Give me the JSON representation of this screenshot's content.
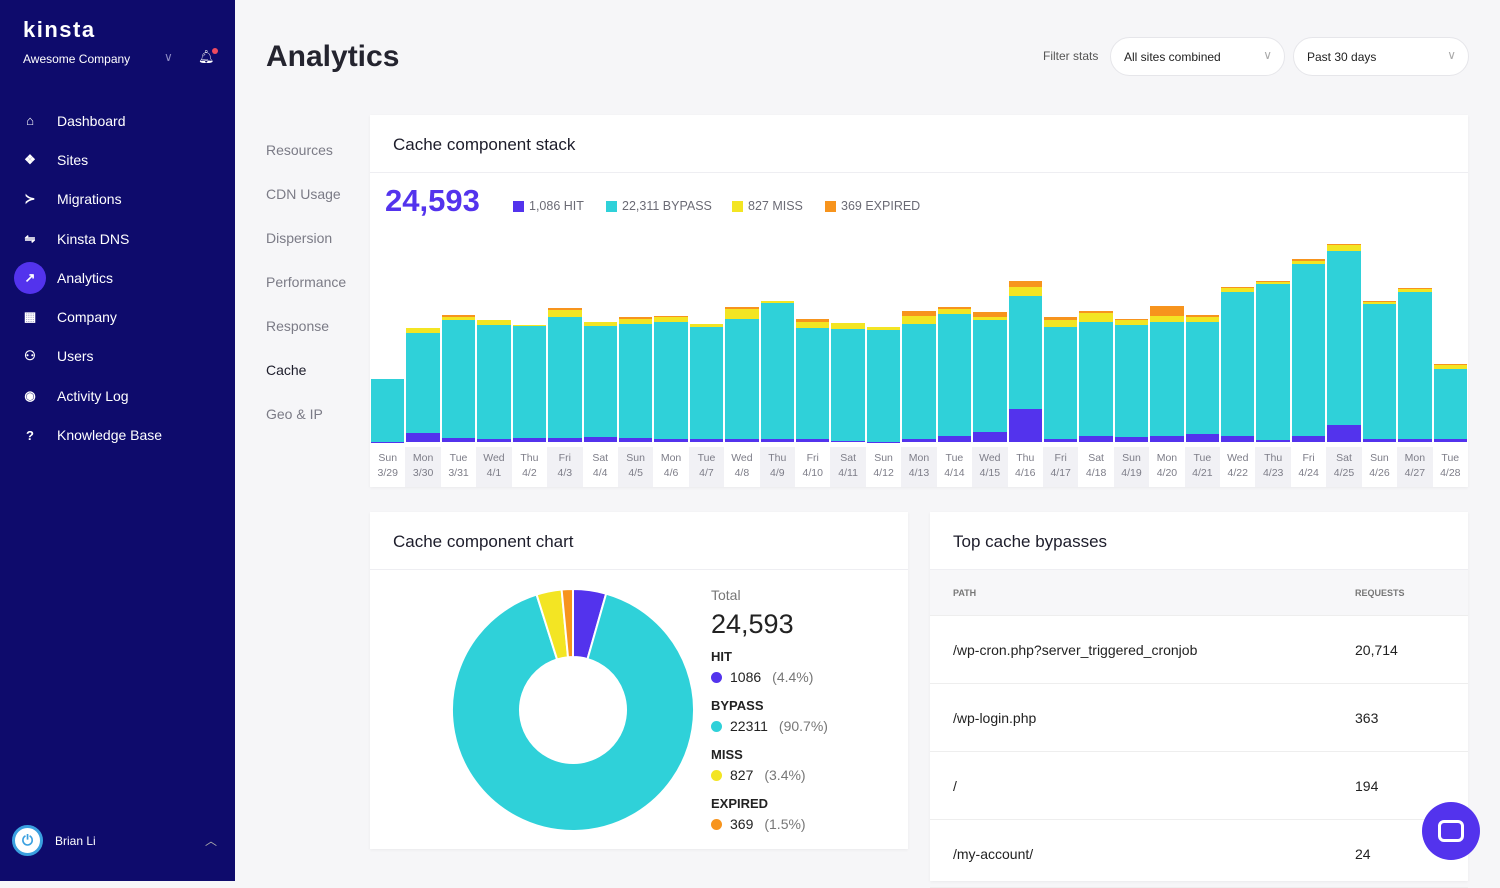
{
  "sidebar": {
    "logo": "kinsta",
    "company": "Awesome Company",
    "items": [
      {
        "label": "Dashboard",
        "icon": "⌂"
      },
      {
        "label": "Sites",
        "icon": "❖"
      },
      {
        "label": "Migrations",
        "icon": "≻"
      },
      {
        "label": "Kinsta DNS",
        "icon": "⇋"
      },
      {
        "label": "Analytics",
        "icon": "↗"
      },
      {
        "label": "Company",
        "icon": "▦"
      },
      {
        "label": "Users",
        "icon": "⚇"
      },
      {
        "label": "Activity Log",
        "icon": "◉"
      },
      {
        "label": "Knowledge Base",
        "icon": "?"
      }
    ],
    "user": "Brian Li"
  },
  "header": {
    "title": "Analytics",
    "filter_label": "Filter stats",
    "site_select": "All sites combined",
    "range_select": "Past 30 days"
  },
  "subnav": [
    "Resources",
    "CDN Usage",
    "Dispersion",
    "Performance",
    "Response",
    "Cache",
    "Geo & IP"
  ],
  "colors": {
    "hit": "#5333ed",
    "bypass": "#2fd1d9",
    "miss": "#f3e523",
    "expired": "#f7941d"
  },
  "stack": {
    "title": "Cache component stack",
    "total": "24,593",
    "legend": [
      "1,086 HIT",
      "22,311 BYPASS",
      "827 MISS",
      "369 EXPIRED"
    ]
  },
  "chart_data": [
    {
      "type": "bar",
      "stacked": true,
      "title": "Cache component stack",
      "categories": [
        [
          "Sun",
          "3/29"
        ],
        [
          "Mon",
          "3/30"
        ],
        [
          "Tue",
          "3/31"
        ],
        [
          "Wed",
          "4/1"
        ],
        [
          "Thu",
          "4/2"
        ],
        [
          "Fri",
          "4/3"
        ],
        [
          "Sat",
          "4/4"
        ],
        [
          "Sun",
          "4/5"
        ],
        [
          "Mon",
          "4/6"
        ],
        [
          "Tue",
          "4/7"
        ],
        [
          "Wed",
          "4/8"
        ],
        [
          "Thu",
          "4/9"
        ],
        [
          "Fri",
          "4/10"
        ],
        [
          "Sat",
          "4/11"
        ],
        [
          "Sun",
          "4/12"
        ],
        [
          "Mon",
          "4/13"
        ],
        [
          "Tue",
          "4/14"
        ],
        [
          "Wed",
          "4/15"
        ],
        [
          "Thu",
          "4/16"
        ],
        [
          "Fri",
          "4/17"
        ],
        [
          "Sat",
          "4/18"
        ],
        [
          "Sun",
          "4/19"
        ],
        [
          "Mon",
          "4/20"
        ],
        [
          "Tue",
          "4/21"
        ],
        [
          "Wed",
          "4/22"
        ],
        [
          "Thu",
          "4/23"
        ],
        [
          "Fri",
          "4/24"
        ],
        [
          "Sat",
          "4/25"
        ],
        [
          "Sun",
          "4/26"
        ],
        [
          "Mon",
          "4/27"
        ],
        [
          "Tue",
          "4/28"
        ]
      ],
      "ylim": [
        0,
        1200
      ],
      "series": [
        {
          "name": "HIT",
          "values": [
            3,
            54,
            24,
            18,
            24,
            24,
            30,
            24,
            18,
            18,
            18,
            18,
            18,
            6,
            3,
            18,
            36,
            60,
            198,
            18,
            36,
            30,
            36,
            48,
            36,
            12,
            36,
            102,
            18,
            18,
            18
          ]
        },
        {
          "name": "BYPASS",
          "values": [
            372,
            594,
            702,
            678,
            666,
            720,
            660,
            678,
            696,
            666,
            714,
            810,
            660,
            666,
            660,
            684,
            726,
            666,
            672,
            666,
            678,
            666,
            678,
            666,
            858,
            924,
            1020,
            1032,
            804,
            876,
            414
          ]
        },
        {
          "name": "MISS",
          "values": [
            0,
            30,
            18,
            30,
            6,
            42,
            24,
            30,
            30,
            18,
            60,
            12,
            36,
            36,
            18,
            48,
            30,
            18,
            48,
            42,
            54,
            30,
            36,
            30,
            24,
            12,
            18,
            36,
            12,
            18,
            24
          ]
        },
        {
          "name": "EXPIRED",
          "values": [
            0,
            0,
            9,
            0,
            0,
            9,
            0,
            12,
            6,
            0,
            12,
            0,
            18,
            0,
            0,
            30,
            12,
            30,
            36,
            18,
            12,
            6,
            60,
            12,
            6,
            6,
            12,
            6,
            6,
            6,
            6
          ]
        }
      ]
    },
    {
      "type": "pie",
      "title": "Cache component chart",
      "labels": [
        "HIT",
        "BYPASS",
        "MISS",
        "EXPIRED"
      ],
      "values": [
        1086,
        22311,
        827,
        369
      ],
      "percent": [
        "(4.4%)",
        "(90.7%)",
        "(3.4%)",
        "(1.5%)"
      ]
    }
  ],
  "donut": {
    "title": "Cache component chart",
    "total_label": "Total",
    "total": "24,593",
    "items": [
      {
        "name": "HIT",
        "value": "1086",
        "pct": "(4.4%)"
      },
      {
        "name": "BYPASS",
        "value": "22311",
        "pct": "(90.7%)"
      },
      {
        "name": "MISS",
        "value": "827",
        "pct": "(3.4%)"
      },
      {
        "name": "EXPIRED",
        "value": "369",
        "pct": "(1.5%)"
      }
    ]
  },
  "bypasses": {
    "title": "Top cache bypasses",
    "col_path": "PATH",
    "col_requests": "REQUESTS",
    "rows": [
      {
        "path": "/wp-cron.php?server_triggered_cronjob",
        "requests": "20,714"
      },
      {
        "path": "/wp-login.php",
        "requests": "363"
      },
      {
        "path": "/",
        "requests": "194"
      },
      {
        "path": "/my-account/",
        "requests": "24"
      }
    ]
  }
}
